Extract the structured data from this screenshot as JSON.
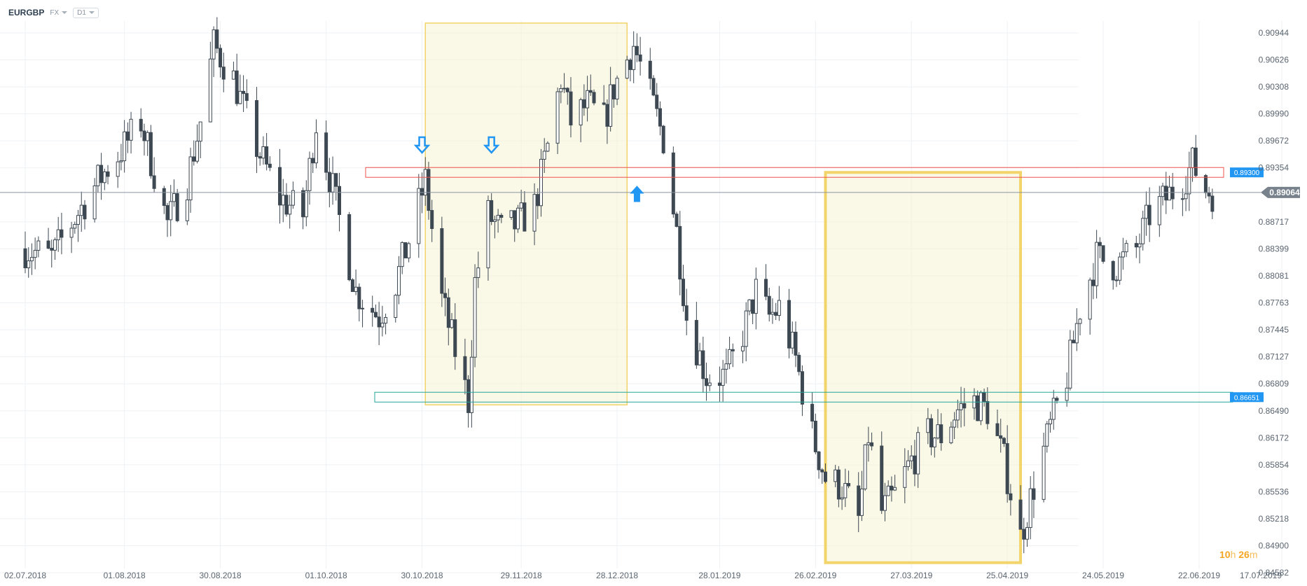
{
  "toolbar": {
    "symbol": "EURGBP",
    "market": "FX",
    "timeframe": "D1"
  },
  "countdown": {
    "h": "10",
    "h_unit": "h",
    "m": "26",
    "m_unit": "m"
  },
  "colors": {
    "candle_up": "#ffffff",
    "candle_down": "#3d4852",
    "resistance": "#ef5350",
    "support": "#26a69a",
    "highlight_fill": "#f7f3d6",
    "highlight_border": "#f2d46b",
    "price_tag": "#2196f3",
    "current_price_tag": "#78828c",
    "arrow": "#2196f3"
  },
  "chart_data": {
    "type": "candlestick",
    "symbol": "EURGBP",
    "timeframe": "D1",
    "x_ticks": [
      "02.07.2018",
      "01.08.2018",
      "30.08.2018",
      "01.10.2018",
      "30.10.2018",
      "29.11.2018",
      "28.12.2018",
      "28.01.2019",
      "26.02.2019",
      "27.03.2019",
      "25.04.2019",
      "24.05.2019",
      "22.06.2019",
      "17.07.2019"
    ],
    "x_range": [
      "02.07.2018",
      "17.07.2019"
    ],
    "y_ticks": [
      "0.90944",
      "0.90626",
      "0.90308",
      "0.89990",
      "0.89672",
      "0.89354",
      "0.88717",
      "0.88399",
      "0.88081",
      "0.87763",
      "0.87445",
      "0.87127",
      "0.86809",
      "0.86490",
      "0.86172",
      "0.85854",
      "0.85536",
      "0.85218",
      "0.84900",
      "0.84582"
    ],
    "ylim": [
      0.84582,
      0.90944
    ],
    "grid": true,
    "current_price": "0.89064",
    "levels": [
      {
        "type": "resistance",
        "label": "0.89300",
        "value": 0.893
      },
      {
        "type": "support",
        "label": "0.86651",
        "value": 0.86651
      }
    ],
    "highlight_zones": [
      {
        "from": "2018-10-31",
        "to": "2018-12-31",
        "low": 0.8656,
        "high": 0.9106
      },
      {
        "from": "2019-03-01",
        "to": "2019-04-29",
        "low": 0.847,
        "high": 0.893
      }
    ],
    "markers": [
      {
        "date": "2018-10-30",
        "direction": "down",
        "value": 0.895
      },
      {
        "date": "2018-11-20",
        "direction": "down",
        "value": 0.895
      },
      {
        "date": "2019-01-03",
        "direction": "up",
        "value": 0.8917
      }
    ],
    "anchors": [
      [
        "2018-07-02",
        0.884
      ],
      [
        "2018-07-10",
        0.883
      ],
      [
        "2018-07-16",
        0.887
      ],
      [
        "2018-07-24",
        0.892
      ],
      [
        "2018-07-30",
        0.895
      ],
      [
        "2018-08-06",
        0.899
      ],
      [
        "2018-08-14",
        0.887
      ],
      [
        "2018-08-20",
        0.892
      ],
      [
        "2018-08-24",
        0.899
      ],
      [
        "2018-08-28",
        0.908
      ],
      [
        "2018-09-03",
        0.904
      ],
      [
        "2018-09-10",
        0.896
      ],
      [
        "2018-09-17",
        0.89
      ],
      [
        "2018-09-24",
        0.888
      ],
      [
        "2018-09-28",
        0.899
      ],
      [
        "2018-10-03",
        0.891
      ],
      [
        "2018-10-10",
        0.879
      ],
      [
        "2018-10-17",
        0.876
      ],
      [
        "2018-10-22",
        0.88
      ],
      [
        "2018-10-26",
        0.885
      ],
      [
        "2018-10-31",
        0.892
      ],
      [
        "2018-11-05",
        0.878
      ],
      [
        "2018-11-09",
        0.872
      ],
      [
        "2018-11-13",
        0.866
      ],
      [
        "2018-11-15",
        0.88
      ],
      [
        "2018-11-19",
        0.888
      ],
      [
        "2018-11-23",
        0.886
      ],
      [
        "2018-11-28",
        0.887
      ],
      [
        "2018-12-03",
        0.889
      ],
      [
        "2018-12-07",
        0.896
      ],
      [
        "2018-12-11",
        0.904
      ],
      [
        "2018-12-14",
        0.899
      ],
      [
        "2018-12-19",
        0.901
      ],
      [
        "2018-12-24",
        0.899
      ],
      [
        "2018-12-27",
        0.903
      ],
      [
        "2019-01-02",
        0.908
      ],
      [
        "2019-01-07",
        0.902
      ],
      [
        "2019-01-11",
        0.897
      ],
      [
        "2019-01-15",
        0.886
      ],
      [
        "2019-01-18",
        0.876
      ],
      [
        "2019-01-24",
        0.869
      ],
      [
        "2019-01-30",
        0.869
      ],
      [
        "2019-02-04",
        0.874
      ],
      [
        "2019-02-08",
        0.879
      ],
      [
        "2019-02-12",
        0.876
      ],
      [
        "2019-02-15",
        0.877
      ],
      [
        "2019-02-20",
        0.871
      ],
      [
        "2019-02-25",
        0.862
      ],
      [
        "2019-03-01",
        0.857
      ],
      [
        "2019-03-06",
        0.856
      ],
      [
        "2019-03-11",
        0.852
      ],
      [
        "2019-03-14",
        0.862
      ],
      [
        "2019-03-18",
        0.853
      ],
      [
        "2019-03-22",
        0.855
      ],
      [
        "2019-03-27",
        0.859
      ],
      [
        "2019-04-01",
        0.862
      ],
      [
        "2019-04-05",
        0.862
      ],
      [
        "2019-04-10",
        0.865
      ],
      [
        "2019-04-15",
        0.866
      ],
      [
        "2019-04-19",
        0.865
      ],
      [
        "2019-04-24",
        0.859
      ],
      [
        "2019-04-29",
        0.85
      ],
      [
        "2019-05-03",
        0.856
      ],
      [
        "2019-05-08",
        0.863
      ],
      [
        "2019-05-13",
        0.869
      ],
      [
        "2019-05-17",
        0.877
      ],
      [
        "2019-05-22",
        0.883
      ],
      [
        "2019-05-28",
        0.882
      ],
      [
        "2019-06-03",
        0.884
      ],
      [
        "2019-06-07",
        0.888
      ],
      [
        "2019-06-12",
        0.89
      ],
      [
        "2019-06-17",
        0.892
      ],
      [
        "2019-06-20",
        0.894
      ],
      [
        "2019-06-24",
        0.891
      ],
      [
        "2019-06-26",
        0.8906
      ]
    ]
  }
}
